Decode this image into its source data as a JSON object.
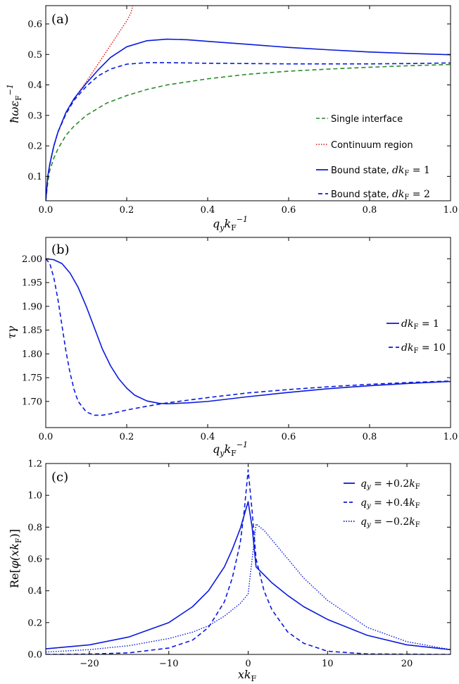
{
  "chart_data": [
    {
      "type": "line",
      "panel_label": "(a)",
      "xlabel": "q_y k_F^-1",
      "ylabel": "ħω ε_F^-1",
      "xlim": [
        0,
        1.0
      ],
      "ylim": [
        0.02,
        0.66
      ],
      "xticks": [
        0.0,
        0.2,
        0.4,
        0.6,
        0.8,
        1.0
      ],
      "xtick_labels": [
        "0.0",
        "0.2",
        "0.4",
        "0.6",
        "0.8",
        "1.0"
      ],
      "yticks": [
        0.1,
        0.2,
        0.3,
        0.4,
        0.5,
        0.6
      ],
      "ytick_labels": [
        "0.1",
        "0.2",
        "0.3",
        "0.4",
        "0.5",
        "0.6"
      ],
      "grid": false,
      "legend_position": "bottom-right",
      "series": [
        {
          "name": "Single interface",
          "color": "#2a8a2a",
          "dash": "dashed",
          "x": [
            0,
            0.005,
            0.01,
            0.02,
            0.03,
            0.05,
            0.07,
            0.1,
            0.15,
            0.2,
            0.25,
            0.3,
            0.4,
            0.5,
            0.6,
            0.7,
            0.8,
            0.9,
            1.0
          ],
          "y": [
            0.02,
            0.08,
            0.12,
            0.16,
            0.19,
            0.235,
            0.265,
            0.3,
            0.34,
            0.365,
            0.385,
            0.4,
            0.42,
            0.435,
            0.445,
            0.452,
            0.458,
            0.463,
            0.467
          ]
        },
        {
          "name": "Continuum region",
          "color": "#dd1111",
          "dash": "dotted",
          "x": [
            0,
            0.005,
            0.01,
            0.02,
            0.03,
            0.05,
            0.07,
            0.1,
            0.12,
            0.15,
            0.18,
            0.2,
            0.21,
            0.215
          ],
          "y": [
            0.02,
            0.1,
            0.14,
            0.2,
            0.245,
            0.31,
            0.355,
            0.41,
            0.45,
            0.51,
            0.57,
            0.61,
            0.635,
            0.66
          ]
        },
        {
          "name": "Bound state, dk_F = 1",
          "color": "#0a1adc",
          "dash": "solid",
          "x": [
            0,
            0.005,
            0.01,
            0.02,
            0.03,
            0.05,
            0.07,
            0.1,
            0.13,
            0.16,
            0.2,
            0.25,
            0.3,
            0.35,
            0.4,
            0.5,
            0.6,
            0.7,
            0.8,
            0.9,
            1.0
          ],
          "y": [
            0.02,
            0.1,
            0.14,
            0.2,
            0.245,
            0.31,
            0.355,
            0.405,
            0.45,
            0.49,
            0.525,
            0.545,
            0.55,
            0.548,
            0.543,
            0.533,
            0.523,
            0.515,
            0.508,
            0.503,
            0.499
          ]
        },
        {
          "name": "Bound state, dk_F = 2",
          "color": "#0a1adc",
          "dash": "dashed",
          "x": [
            0,
            0.005,
            0.01,
            0.02,
            0.03,
            0.05,
            0.07,
            0.1,
            0.13,
            0.16,
            0.2,
            0.25,
            0.3,
            0.4,
            0.5,
            0.6,
            0.7,
            0.8,
            0.9,
            1.0
          ],
          "y": [
            0.02,
            0.1,
            0.14,
            0.2,
            0.245,
            0.305,
            0.35,
            0.395,
            0.43,
            0.452,
            0.468,
            0.473,
            0.473,
            0.471,
            0.47,
            0.469,
            0.469,
            0.469,
            0.47,
            0.472
          ]
        }
      ]
    },
    {
      "type": "line",
      "panel_label": "(b)",
      "xlabel": "q_y k_F^-1",
      "ylabel": "τγ",
      "xlim": [
        0,
        1.0
      ],
      "ylim": [
        1.645,
        2.045
      ],
      "xticks": [
        0.0,
        0.2,
        0.4,
        0.6,
        0.8,
        1.0
      ],
      "xtick_labels": [
        "0.0",
        "0.2",
        "0.4",
        "0.6",
        "0.8",
        "1.0"
      ],
      "yticks": [
        1.7,
        1.75,
        1.8,
        1.85,
        1.9,
        1.95,
        2.0
      ],
      "ytick_labels": [
        "1.70",
        "1.75",
        "1.80",
        "1.85",
        "1.90",
        "1.95",
        "2.00"
      ],
      "grid": false,
      "legend_position": "right",
      "series": [
        {
          "name": "dk_F = 1",
          "color": "#0a1adc",
          "dash": "solid",
          "x": [
            0,
            0.02,
            0.04,
            0.06,
            0.08,
            0.1,
            0.12,
            0.14,
            0.16,
            0.18,
            0.2,
            0.22,
            0.25,
            0.28,
            0.3,
            0.35,
            0.4,
            0.5,
            0.6,
            0.7,
            0.8,
            0.9,
            1.0
          ],
          "y": [
            2.0,
            1.998,
            1.99,
            1.97,
            1.94,
            1.9,
            1.855,
            1.81,
            1.775,
            1.748,
            1.728,
            1.713,
            1.701,
            1.696,
            1.695,
            1.697,
            1.7,
            1.71,
            1.719,
            1.727,
            1.733,
            1.738,
            1.742
          ]
        },
        {
          "name": "dk_F = 10",
          "color": "#0a1adc",
          "dash": "dashed",
          "x": [
            0,
            0.01,
            0.02,
            0.03,
            0.04,
            0.05,
            0.06,
            0.07,
            0.08,
            0.1,
            0.12,
            0.14,
            0.16,
            0.2,
            0.25,
            0.3,
            0.4,
            0.5,
            0.6,
            0.7,
            0.8,
            0.9,
            1.0
          ],
          "y": [
            2.0,
            1.99,
            1.96,
            1.915,
            1.86,
            1.805,
            1.76,
            1.725,
            1.7,
            1.678,
            1.671,
            1.671,
            1.674,
            1.682,
            1.69,
            1.697,
            1.708,
            1.718,
            1.725,
            1.731,
            1.736,
            1.74,
            1.743
          ]
        }
      ]
    },
    {
      "type": "line",
      "panel_label": "(c)",
      "xlabel": "x k_F",
      "ylabel": "Re[φ(x k_F)]",
      "xlim": [
        -25.5,
        25.5
      ],
      "ylim": [
        0,
        1.2
      ],
      "xticks": [
        -20,
        -10,
        0,
        10,
        20
      ],
      "xtick_labels": [
        "−20",
        "−10",
        "0",
        "10",
        "20"
      ],
      "yticks": [
        0,
        0.2,
        0.4,
        0.6,
        0.8,
        1.0,
        1.2
      ],
      "ytick_labels": [
        "0.0",
        "0.2",
        "0.4",
        "0.6",
        "0.8",
        "1.0",
        "1.2"
      ],
      "grid": false,
      "legend_position": "top-right",
      "series": [
        {
          "name": "q_y = +0.2k_F",
          "color": "#0a1adc",
          "dash": "solid",
          "x": [
            -25.5,
            -20,
            -15,
            -10,
            -7,
            -5,
            -3,
            -2,
            -1,
            0,
            0.5,
            1,
            2,
            3,
            5,
            7,
            10,
            15,
            20,
            25.5
          ],
          "y": [
            0.035,
            0.06,
            0.11,
            0.2,
            0.3,
            0.4,
            0.55,
            0.66,
            0.79,
            0.96,
            0.8,
            0.55,
            0.5,
            0.45,
            0.37,
            0.3,
            0.22,
            0.12,
            0.06,
            0.03
          ]
        },
        {
          "name": "q_y = +0.4k_F",
          "color": "#0a1adc",
          "dash": "dashed",
          "x": [
            -25.5,
            -20,
            -15,
            -10,
            -7,
            -5,
            -3,
            -2,
            -1,
            -0.5,
            0,
            0.5,
            1,
            2,
            3,
            5,
            7,
            10,
            15,
            25.5
          ],
          "y": [
            0.0,
            0.002,
            0.01,
            0.04,
            0.09,
            0.17,
            0.33,
            0.48,
            0.7,
            0.9,
            1.16,
            0.9,
            0.6,
            0.4,
            0.28,
            0.14,
            0.07,
            0.02,
            0.003,
            0.0
          ]
        },
        {
          "name": "q_y = −0.2k_F",
          "color": "#0a1adc",
          "dash": "dotted",
          "x": [
            -25.5,
            -20,
            -15,
            -10,
            -7,
            -5,
            -3,
            -2,
            -1,
            0,
            0.5,
            1,
            2,
            3,
            5,
            7,
            10,
            15,
            20,
            25.5
          ],
          "y": [
            0.015,
            0.03,
            0.055,
            0.1,
            0.14,
            0.18,
            0.24,
            0.28,
            0.32,
            0.38,
            0.6,
            0.82,
            0.78,
            0.72,
            0.6,
            0.48,
            0.34,
            0.17,
            0.08,
            0.03
          ]
        }
      ]
    }
  ]
}
